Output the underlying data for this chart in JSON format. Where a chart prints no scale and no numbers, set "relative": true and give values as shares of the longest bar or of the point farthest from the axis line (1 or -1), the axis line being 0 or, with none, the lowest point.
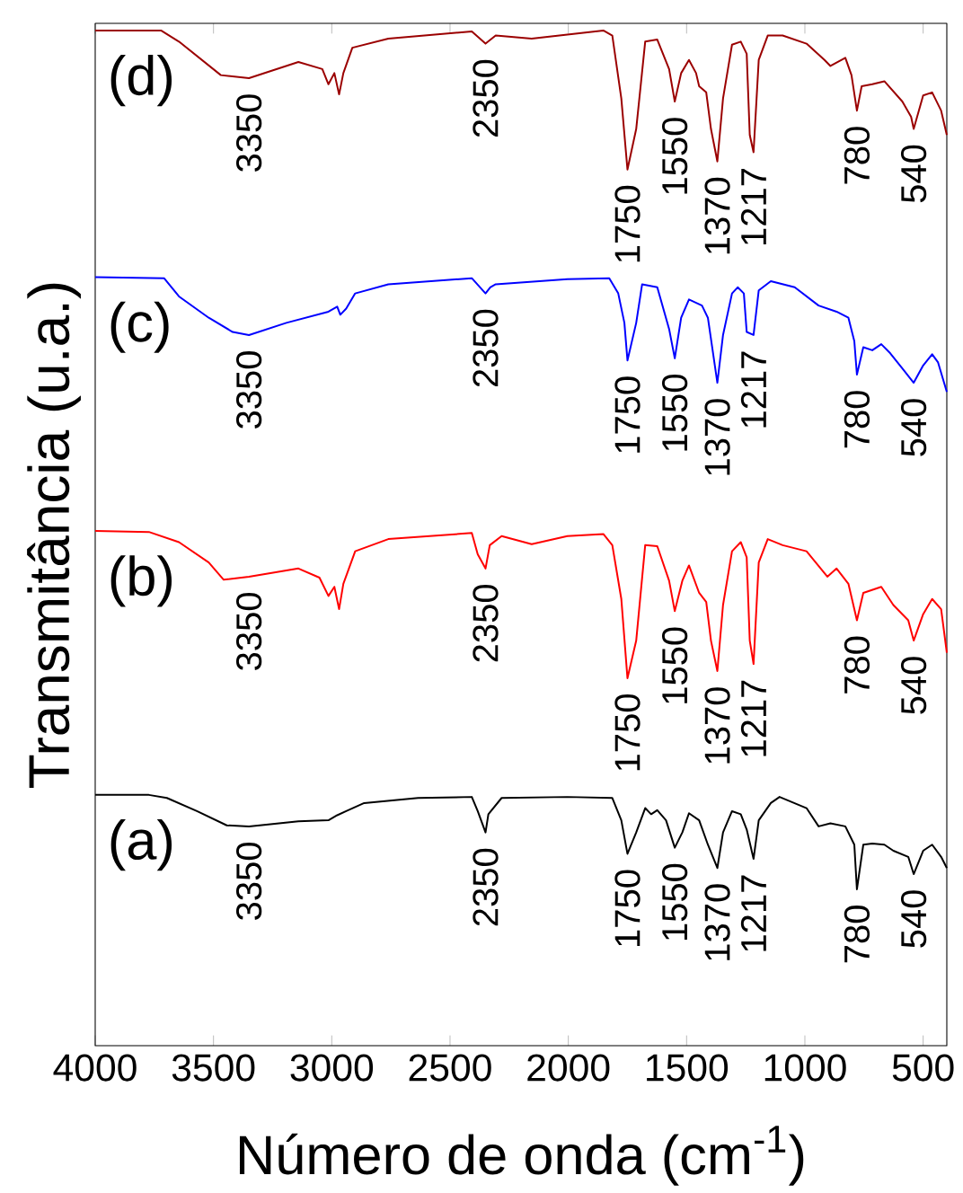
{
  "chart_data": {
    "type": "line",
    "relative": true,
    "xlabel": "Número de onda (cm$^{-1}$)",
    "ylabel": "Transmitância (u.a.)",
    "xlim": [
      4000,
      400
    ],
    "xticks": [
      4000,
      3500,
      3000,
      2500,
      2000,
      1500,
      1000,
      500
    ],
    "marker": "none",
    "series": [
      {
        "name": "(a)",
        "color": "#000000",
        "x": [
          4000,
          3773,
          3697,
          3570,
          3444,
          3350,
          3141,
          3014,
          2977,
          2939,
          2863,
          2635,
          2408,
          2383,
          2350,
          2338,
          2282,
          2004,
          1814,
          1776,
          1750,
          1713,
          1675,
          1650,
          1624,
          1587,
          1550,
          1518,
          1490,
          1447,
          1410,
          1370,
          1346,
          1308,
          1271,
          1246,
          1217,
          1195,
          1144,
          1107,
          993,
          942,
          892,
          829,
          791,
          780,
          753,
          715,
          664,
          626,
          563,
          540,
          500,
          462,
          424,
          400
        ],
        "values": [
          0.247,
          0.247,
          0.244,
          0.231,
          0.217,
          0.216,
          0.221,
          0.222,
          0.227,
          0.231,
          0.239,
          0.244,
          0.245,
          0.231,
          0.21,
          0.228,
          0.244,
          0.245,
          0.244,
          0.222,
          0.189,
          0.21,
          0.234,
          0.228,
          0.232,
          0.222,
          0.195,
          0.21,
          0.229,
          0.222,
          0.198,
          0.175,
          0.21,
          0.231,
          0.228,
          0.213,
          0.184,
          0.222,
          0.239,
          0.245,
          0.234,
          0.216,
          0.219,
          0.216,
          0.198,
          0.154,
          0.198,
          0.199,
          0.198,
          0.192,
          0.186,
          0.169,
          0.192,
          0.198,
          0.186,
          0.175
        ]
      },
      {
        "name": "(b)",
        "color": "#ff0000",
        "x": [
          4000,
          3773,
          3646,
          3520,
          3457,
          3350,
          3141,
          3052,
          3014,
          2989,
          2969,
          2951,
          2901,
          2761,
          2408,
          2383,
          2350,
          2332,
          2282,
          2155,
          2004,
          1852,
          1814,
          1776,
          1750,
          1713,
          1675,
          1624,
          1574,
          1550,
          1518,
          1490,
          1447,
          1417,
          1397,
          1370,
          1346,
          1308,
          1271,
          1246,
          1233,
          1217,
          1195,
          1157,
          1094,
          993,
          905,
          866,
          816,
          780,
          753,
          715,
          677,
          626,
          563,
          540,
          500,
          462,
          424,
          400
        ],
        "values": [
          0.507,
          0.506,
          0.496,
          0.476,
          0.459,
          0.462,
          0.47,
          0.461,
          0.443,
          0.452,
          0.43,
          0.455,
          0.487,
          0.499,
          0.505,
          0.484,
          0.47,
          0.493,
          0.502,
          0.494,
          0.502,
          0.504,
          0.493,
          0.44,
          0.362,
          0.399,
          0.493,
          0.492,
          0.458,
          0.428,
          0.458,
          0.473,
          0.446,
          0.437,
          0.399,
          0.369,
          0.434,
          0.487,
          0.496,
          0.481,
          0.399,
          0.376,
          0.476,
          0.499,
          0.493,
          0.487,
          0.462,
          0.47,
          0.455,
          0.419,
          0.446,
          0.449,
          0.452,
          0.434,
          0.419,
          0.399,
          0.425,
          0.44,
          0.43,
          0.387
        ]
      },
      {
        "name": "(c)",
        "color": "#0000ff",
        "x": [
          4000,
          3709,
          3646,
          3520,
          3419,
          3350,
          3192,
          3014,
          2977,
          2964,
          2939,
          2901,
          2761,
          2408,
          2350,
          2330,
          2307,
          2004,
          1827,
          1789,
          1763,
          1750,
          1713,
          1688,
          1624,
          1574,
          1550,
          1523,
          1490,
          1435,
          1410,
          1370,
          1346,
          1308,
          1284,
          1258,
          1246,
          1217,
          1195,
          1144,
          1043,
          942,
          866,
          816,
          791,
          780,
          753,
          715,
          677,
          639,
          588,
          540,
          500,
          462,
          437,
          400
        ],
        "values": [
          0.757,
          0.756,
          0.738,
          0.717,
          0.703,
          0.7,
          0.712,
          0.723,
          0.728,
          0.72,
          0.726,
          0.741,
          0.75,
          0.756,
          0.741,
          0.747,
          0.75,
          0.755,
          0.756,
          0.741,
          0.712,
          0.675,
          0.712,
          0.75,
          0.747,
          0.706,
          0.677,
          0.717,
          0.735,
          0.729,
          0.717,
          0.653,
          0.7,
          0.741,
          0.747,
          0.741,
          0.703,
          0.7,
          0.744,
          0.753,
          0.747,
          0.729,
          0.723,
          0.717,
          0.694,
          0.661,
          0.688,
          0.685,
          0.691,
          0.682,
          0.667,
          0.653,
          0.67,
          0.681,
          0.673,
          0.644
        ]
      },
      {
        "name": "(d)",
        "color": "#9b0000",
        "x": [
          4000,
          3722,
          3646,
          3469,
          3350,
          3141,
          3040,
          3014,
          2989,
          2969,
          2951,
          2913,
          2761,
          2408,
          2350,
          2307,
          2155,
          2004,
          1852,
          1814,
          1776,
          1750,
          1713,
          1675,
          1624,
          1574,
          1550,
          1523,
          1490,
          1460,
          1447,
          1417,
          1397,
          1370,
          1346,
          1308,
          1271,
          1246,
          1233,
          1217,
          1195,
          1157,
          1094,
          993,
          917,
          892,
          829,
          803,
          780,
          760,
          715,
          664,
          588,
          551,
          540,
          500,
          462,
          424,
          400
        ],
        "values": [
          1.0,
          1.0,
          0.989,
          0.956,
          0.953,
          0.969,
          0.962,
          0.947,
          0.958,
          0.937,
          0.958,
          0.983,
          0.992,
          0.999,
          0.987,
          0.995,
          0.992,
          0.996,
          1.0,
          0.995,
          0.933,
          0.863,
          0.903,
          0.989,
          0.991,
          0.962,
          0.93,
          0.958,
          0.971,
          0.958,
          0.945,
          0.939,
          0.903,
          0.871,
          0.933,
          0.986,
          0.989,
          0.977,
          0.897,
          0.88,
          0.971,
          0.995,
          0.995,
          0.987,
          0.971,
          0.965,
          0.973,
          0.956,
          0.921,
          0.945,
          0.947,
          0.95,
          0.93,
          0.915,
          0.903,
          0.936,
          0.939,
          0.921,
          0.897
        ]
      }
    ],
    "annotations": [
      {
        "text": "3350",
        "x": 3350,
        "y": 0.216
      },
      {
        "text": "2350",
        "x": 2350,
        "y": 0.21
      },
      {
        "text": "1750",
        "x": 1750,
        "y": 0.189
      },
      {
        "text": "1550",
        "x": 1550,
        "y": 0.195
      },
      {
        "text": "1370",
        "x": 1370,
        "y": 0.175
      },
      {
        "text": "1217",
        "x": 1217,
        "y": 0.184
      },
      {
        "text": "780",
        "x": 780,
        "y": 0.154
      },
      {
        "text": "540",
        "x": 540,
        "y": 0.169
      },
      {
        "text": "3350",
        "x": 3350,
        "y": 0.462
      },
      {
        "text": "2350",
        "x": 2350,
        "y": 0.47
      },
      {
        "text": "1750",
        "x": 1750,
        "y": 0.362
      },
      {
        "text": "1550",
        "x": 1550,
        "y": 0.428
      },
      {
        "text": "1370",
        "x": 1370,
        "y": 0.369
      },
      {
        "text": "1217",
        "x": 1217,
        "y": 0.376
      },
      {
        "text": "780",
        "x": 780,
        "y": 0.419
      },
      {
        "text": "540",
        "x": 540,
        "y": 0.399
      },
      {
        "text": "3350",
        "x": 3350,
        "y": 0.7
      },
      {
        "text": "2350",
        "x": 2350,
        "y": 0.741
      },
      {
        "text": "1750",
        "x": 1750,
        "y": 0.675
      },
      {
        "text": "1550",
        "x": 1550,
        "y": 0.677
      },
      {
        "text": "1370",
        "x": 1370,
        "y": 0.653
      },
      {
        "text": "1217",
        "x": 1217,
        "y": 0.7
      },
      {
        "text": "780",
        "x": 780,
        "y": 0.661
      },
      {
        "text": "540",
        "x": 540,
        "y": 0.653
      },
      {
        "text": "3350",
        "x": 3350,
        "y": 0.953
      },
      {
        "text": "2350",
        "x": 2350,
        "y": 0.987
      },
      {
        "text": "1750",
        "x": 1750,
        "y": 0.863
      },
      {
        "text": "1550",
        "x": 1550,
        "y": 0.93
      },
      {
        "text": "1370",
        "x": 1370,
        "y": 0.871
      },
      {
        "text": "1217",
        "x": 1217,
        "y": 0.88
      },
      {
        "text": "780",
        "x": 780,
        "y": 0.921
      },
      {
        "text": "540",
        "x": 540,
        "y": 0.903
      }
    ]
  }
}
